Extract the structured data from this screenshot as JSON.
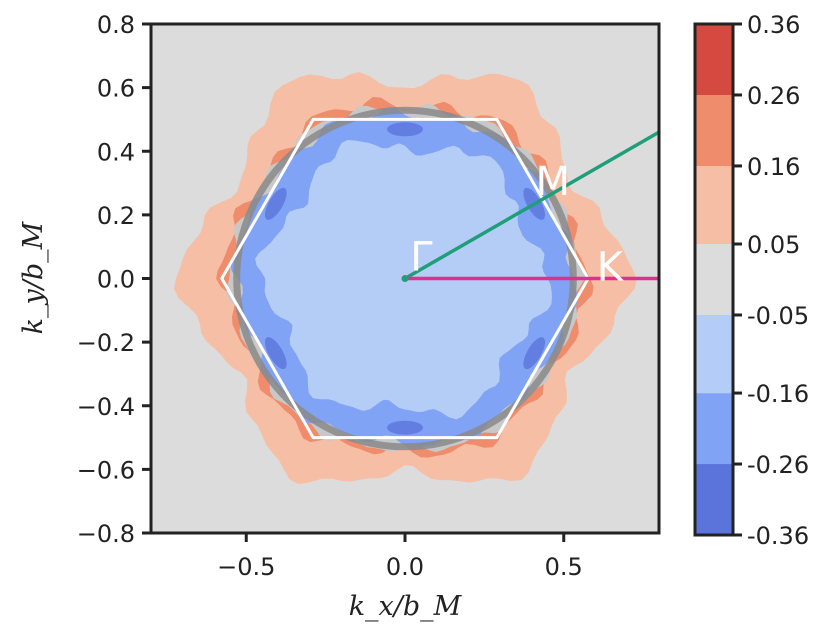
{
  "chart_data": {
    "type": "contourf",
    "xlabel": "k_x/b_M",
    "ylabel": "k_y/b_M",
    "xlim": [
      -0.8,
      0.8
    ],
    "ylim": [
      -0.8,
      0.8
    ],
    "x_ticks": [
      {
        "value": -0.5,
        "label": "−0.5"
      },
      {
        "value": 0.0,
        "label": "0.0"
      },
      {
        "value": 0.5,
        "label": "0.5"
      }
    ],
    "y_ticks": [
      {
        "value": 0.8,
        "label": "0.8"
      },
      {
        "value": 0.6,
        "label": "0.6"
      },
      {
        "value": 0.4,
        "label": "0.4"
      },
      {
        "value": 0.2,
        "label": "0.2"
      },
      {
        "value": 0.0,
        "label": "0.0"
      },
      {
        "value": -0.2,
        "label": "−0.2"
      },
      {
        "value": -0.4,
        "label": "−0.4"
      },
      {
        "value": -0.6,
        "label": "−0.6"
      },
      {
        "value": -0.8,
        "label": "−0.8"
      }
    ],
    "colorbar": {
      "levels": [
        -0.36,
        -0.26,
        -0.16,
        -0.05,
        0.05,
        0.16,
        0.26,
        0.36
      ],
      "labels": [
        "-0.36",
        "-0.26",
        "-0.16",
        "-0.05",
        "0.05",
        "0.16",
        "0.26",
        "0.36"
      ],
      "colors": [
        "#5a74dc",
        "#80a3f5",
        "#b4cdf7",
        "#dcdcdc",
        "#f6bfa5",
        "#ee8c6c",
        "#d44a40"
      ]
    },
    "background_color": "#dcdcdc",
    "fermi_circle_radius": 0.53,
    "brillouin_zone_hexagon": [
      {
        "x": 0.577,
        "y": 0.0
      },
      {
        "x": 0.289,
        "y": 0.5
      },
      {
        "x": -0.289,
        "y": 0.5
      },
      {
        "x": -0.577,
        "y": 0.0
      },
      {
        "x": -0.289,
        "y": -0.5
      },
      {
        "x": 0.289,
        "y": -0.5
      }
    ],
    "paths": [
      {
        "name": "Gamma-M",
        "color": "#1f9e7a",
        "from": {
          "x": 0.0,
          "y": 0.0
        },
        "to": {
          "x": 0.8,
          "y": 0.46
        }
      },
      {
        "name": "Gamma-K",
        "color": "#e0308f",
        "from": {
          "x": 0.0,
          "y": 0.0
        },
        "to": {
          "x": 0.8,
          "y": 0.0
        }
      }
    ],
    "annotations": [
      {
        "text": "Γ",
        "x": 0.01,
        "y": 0.0
      },
      {
        "text": "M",
        "x": 0.43,
        "y": 0.25
      },
      {
        "text": "K",
        "x": 0.585,
        "y": 0.0
      }
    ]
  }
}
